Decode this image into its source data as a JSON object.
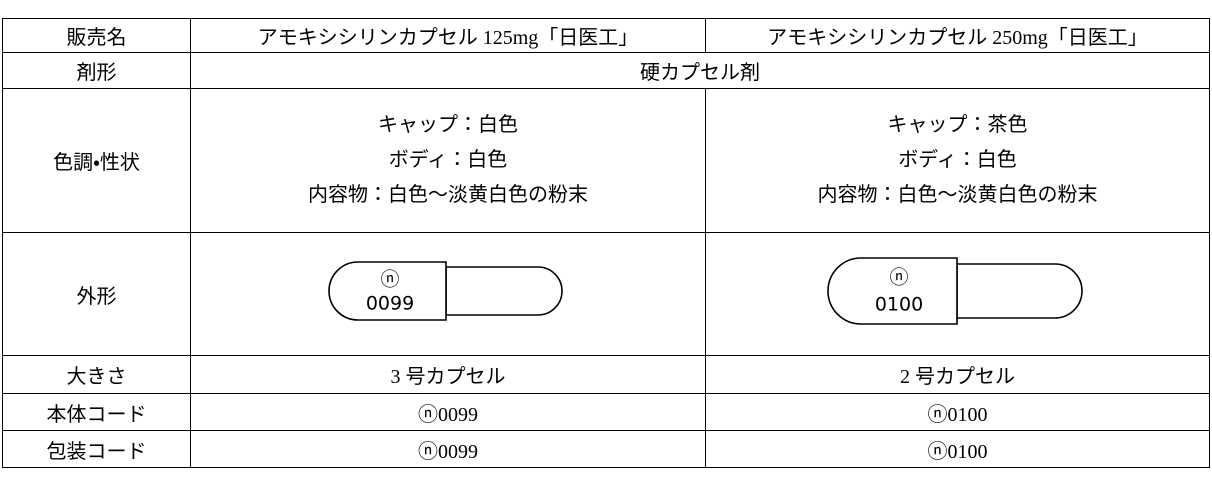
{
  "table": {
    "header": [
      "販売名",
      "アモキシシリンカプセル 125mg「日医工」",
      "アモキシシリンカプセル 250mg「日医工」"
    ],
    "form": {
      "label": "剤形",
      "value": "硬カプセル剤"
    },
    "appearance": {
      "label": "色調・性状",
      "cells": [
        [
          "キャップ：白色",
          "ボディ：白色",
          "内容物：白色～淡黄白色の粉末"
        ],
        [
          "キャップ：茶色",
          "ボディ：白色",
          "内容物：白色～淡黄白色の粉末"
        ]
      ]
    },
    "shape": {
      "label": "外形",
      "capsules": [
        {
          "mark": "ⓝ",
          "code": "0099"
        },
        {
          "mark": "ⓝ",
          "code": "0100"
        }
      ]
    },
    "size": {
      "label": "大きさ",
      "cells": [
        "3 号カプセル",
        "2 号カプセル"
      ]
    },
    "body_code": {
      "label": "本体コード",
      "cells": [
        "ⓝ0099",
        "ⓝ0100"
      ]
    },
    "package_code": {
      "label": "包装コード",
      "cells": [
        "ⓝ0099",
        "ⓝ0100"
      ]
    }
  }
}
